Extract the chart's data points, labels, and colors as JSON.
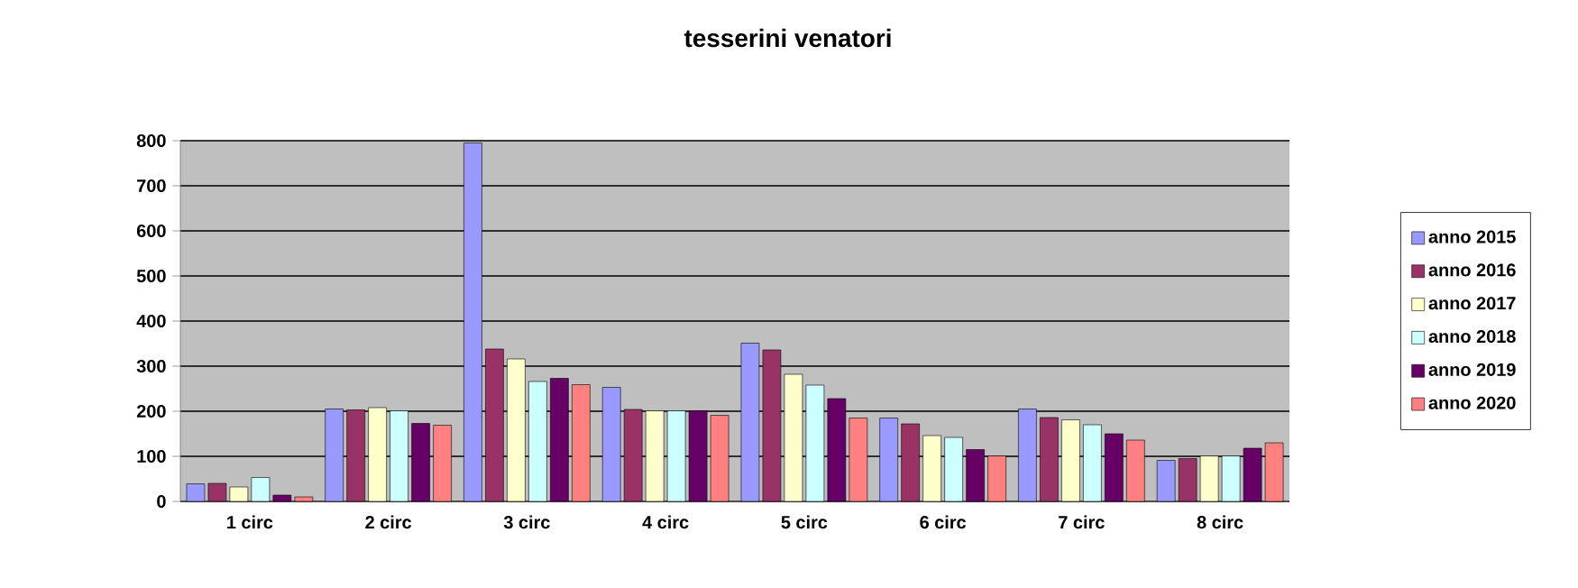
{
  "chart_data": {
    "type": "bar",
    "title": "tesserini venatori",
    "categories": [
      "1 circ",
      "2 circ",
      "3 circ",
      "4 circ",
      "5 circ",
      "6 circ",
      "7 circ",
      "8 circ"
    ],
    "series": [
      {
        "name": "anno 2015",
        "color": "#9999ff",
        "values": [
          39,
          205,
          795,
          253,
          351,
          185,
          205,
          91
        ]
      },
      {
        "name": "anno 2016",
        "color": "#993366",
        "values": [
          40,
          203,
          338,
          204,
          336,
          172,
          186,
          95
        ]
      },
      {
        "name": "anno 2017",
        "color": "#ffffcc",
        "values": [
          32,
          208,
          316,
          201,
          282,
          146,
          181,
          101
        ]
      },
      {
        "name": "anno 2018",
        "color": "#ccffff",
        "values": [
          53,
          201,
          266,
          201,
          258,
          142,
          170,
          101
        ]
      },
      {
        "name": "anno 2019",
        "color": "#660066",
        "values": [
          14,
          173,
          273,
          201,
          228,
          115,
          150,
          118
        ]
      },
      {
        "name": "anno 2020",
        "color": "#ff8080",
        "values": [
          10,
          169,
          259,
          191,
          185,
          101,
          136,
          130
        ]
      }
    ],
    "ylim": [
      0,
      800
    ],
    "yticks": [
      0,
      100,
      200,
      300,
      400,
      500,
      600,
      700,
      800
    ],
    "grid": "y",
    "legend": "right"
  }
}
